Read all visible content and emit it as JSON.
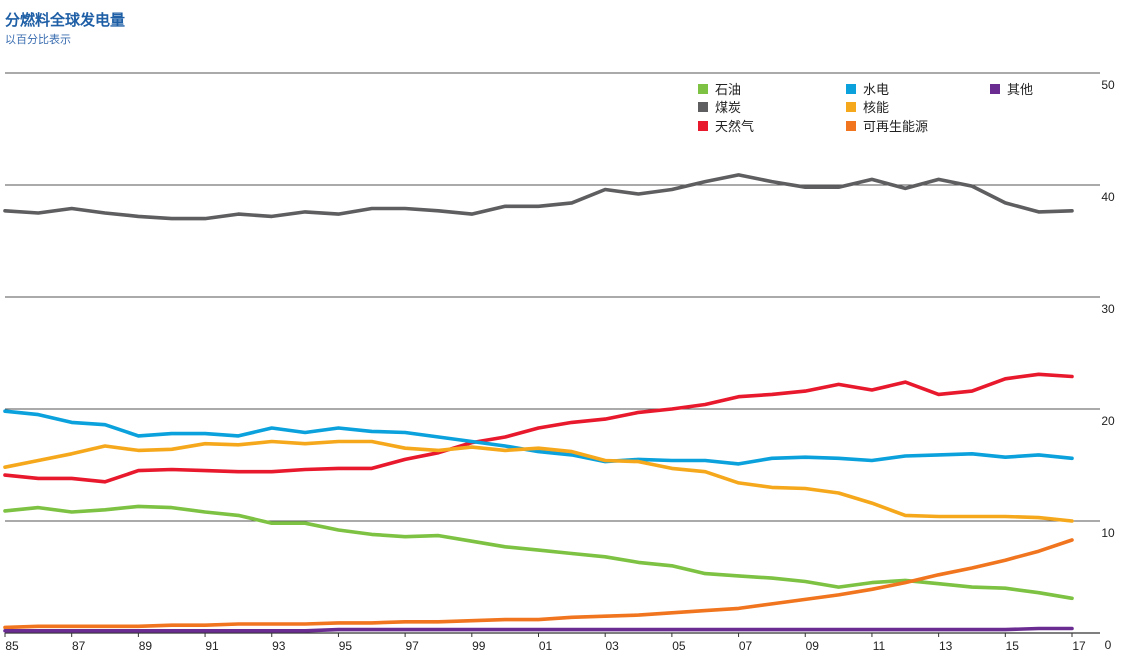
{
  "chart_data": {
    "type": "line",
    "title": "分燃料全球发电量",
    "subtitle": "以百分比表示",
    "xlabel": "",
    "ylabel": "",
    "ylim": [
      0,
      50
    ],
    "yticks": [
      "0",
      "10",
      "20",
      "30",
      "40",
      "50"
    ],
    "grid": true,
    "legend_position": "top-right",
    "x": [
      1985,
      1986,
      1987,
      1988,
      1989,
      1990,
      1991,
      1992,
      1993,
      1994,
      1995,
      1996,
      1997,
      1998,
      1999,
      2000,
      2001,
      2002,
      2003,
      2004,
      2005,
      2006,
      2007,
      2008,
      2009,
      2010,
      2011,
      2012,
      2013,
      2014,
      2015,
      2016,
      2017
    ],
    "xtick_labels": [
      "85",
      "87",
      "89",
      "91",
      "93",
      "95",
      "97",
      "99",
      "01",
      "03",
      "05",
      "07",
      "09",
      "11",
      "13",
      "15",
      "17"
    ],
    "series": [
      {
        "name": "石油",
        "color": "#7dc242",
        "values": [
          10.9,
          11.2,
          10.8,
          11.0,
          11.3,
          11.2,
          10.8,
          10.5,
          9.8,
          9.8,
          9.2,
          8.8,
          8.6,
          8.7,
          8.2,
          7.7,
          7.4,
          7.1,
          6.8,
          6.3,
          6.0,
          5.3,
          5.1,
          4.9,
          4.6,
          4.1,
          4.5,
          4.7,
          4.4,
          4.1,
          4.0,
          3.6,
          3.1
        ]
      },
      {
        "name": "煤炭",
        "color": "#5e5e60",
        "values": [
          37.7,
          37.5,
          37.9,
          37.5,
          37.2,
          37.0,
          37.0,
          37.4,
          37.2,
          37.6,
          37.4,
          37.9,
          37.9,
          37.7,
          37.4,
          38.1,
          38.1,
          38.4,
          39.6,
          39.2,
          39.6,
          40.3,
          40.9,
          40.3,
          39.8,
          39.8,
          40.5,
          39.7,
          40.5,
          39.9,
          38.4,
          37.6,
          37.7
        ]
      },
      {
        "name": "天然气",
        "color": "#e8192c",
        "values": [
          14.1,
          13.8,
          13.8,
          13.5,
          14.5,
          14.6,
          14.5,
          14.4,
          14.4,
          14.6,
          14.7,
          14.7,
          15.5,
          16.1,
          17.0,
          17.5,
          18.3,
          18.8,
          19.1,
          19.7,
          20.0,
          20.4,
          21.1,
          21.3,
          21.6,
          22.2,
          21.7,
          22.4,
          21.3,
          21.6,
          22.7,
          23.1,
          22.9
        ]
      },
      {
        "name": "水电",
        "color": "#0aa1dc",
        "values": [
          19.8,
          19.5,
          18.8,
          18.6,
          17.6,
          17.8,
          17.8,
          17.6,
          18.3,
          17.9,
          18.3,
          18.0,
          17.9,
          17.5,
          17.1,
          16.7,
          16.2,
          15.9,
          15.3,
          15.5,
          15.4,
          15.4,
          15.1,
          15.6,
          15.7,
          15.6,
          15.4,
          15.8,
          15.9,
          16.0,
          15.7,
          15.9,
          15.6
        ]
      },
      {
        "name": "核能",
        "color": "#f6a81c",
        "values": [
          14.8,
          15.4,
          16.0,
          16.7,
          16.3,
          16.4,
          16.9,
          16.8,
          17.1,
          16.9,
          17.1,
          17.1,
          16.5,
          16.3,
          16.6,
          16.3,
          16.5,
          16.2,
          15.4,
          15.3,
          14.7,
          14.4,
          13.4,
          13.0,
          12.9,
          12.5,
          11.6,
          10.5,
          10.4,
          10.4,
          10.4,
          10.3,
          10.0
        ]
      },
      {
        "name": "可再生能源",
        "color": "#f0751e",
        "values": [
          0.5,
          0.6,
          0.6,
          0.6,
          0.6,
          0.7,
          0.7,
          0.8,
          0.8,
          0.8,
          0.9,
          0.9,
          1.0,
          1.0,
          1.1,
          1.2,
          1.2,
          1.4,
          1.5,
          1.6,
          1.8,
          2.0,
          2.2,
          2.6,
          3.0,
          3.4,
          3.9,
          4.5,
          5.2,
          5.8,
          6.5,
          7.3,
          8.3
        ]
      },
      {
        "name": "其他",
        "color": "#6a2c91",
        "values": [
          0.2,
          0.2,
          0.2,
          0.2,
          0.2,
          0.2,
          0.2,
          0.2,
          0.2,
          0.2,
          0.3,
          0.3,
          0.3,
          0.3,
          0.3,
          0.3,
          0.3,
          0.3,
          0.3,
          0.3,
          0.3,
          0.3,
          0.3,
          0.3,
          0.3,
          0.3,
          0.3,
          0.3,
          0.3,
          0.3,
          0.3,
          0.4,
          0.4
        ]
      }
    ],
    "legend_order": [
      0,
      3,
      6,
      1,
      4,
      2,
      5
    ]
  }
}
